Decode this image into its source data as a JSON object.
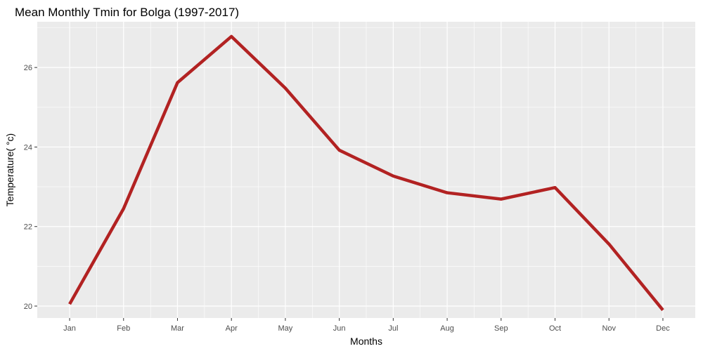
{
  "chart_data": {
    "type": "line",
    "title": "Mean Monthly Tmin for Bolga (1997-2017)",
    "xlabel": "Months",
    "ylabel": "Temperature( °c)",
    "categories": [
      "Jan",
      "Feb",
      "Mar",
      "Apr",
      "May",
      "Jun",
      "Jul",
      "Aug",
      "Sep",
      "Oct",
      "Nov",
      "Dec"
    ],
    "series": [
      {
        "values": [
          20.05,
          22.45,
          25.62,
          26.78,
          25.48,
          23.92,
          23.27,
          22.85,
          22.69,
          22.98,
          21.56,
          19.9
        ],
        "color": "#b22222"
      }
    ],
    "yticks": [
      20,
      22,
      24,
      26
    ],
    "ylim": [
      19.7,
      27.15
    ],
    "grid": true,
    "legend": "none",
    "panel_background": "#ebebeb",
    "grid_color": "#ffffff"
  }
}
